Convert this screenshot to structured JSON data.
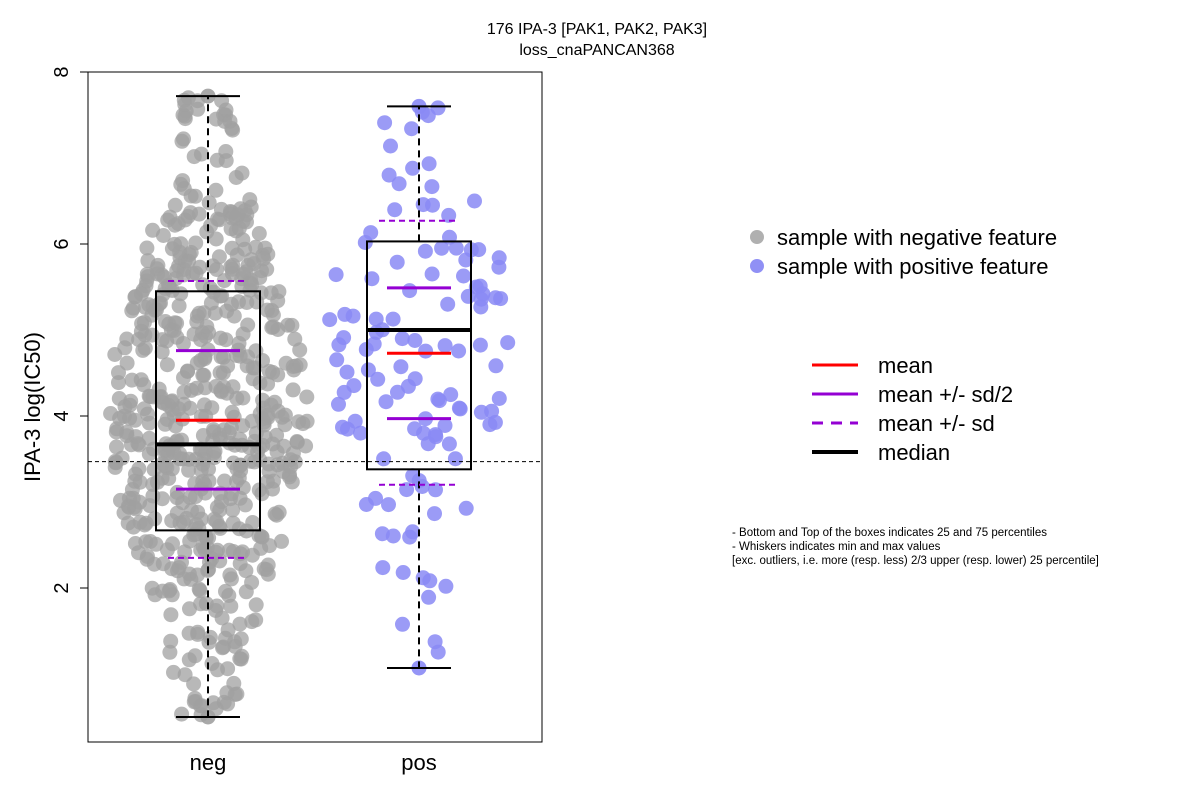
{
  "chart_data": {
    "type": "beeswarm-boxplot",
    "title": "176 IPA-3 [PAK1, PAK2, PAK3]",
    "subtitle": "loss_cnaPANCAN368",
    "ylabel": "IPA-3 log(IC50)",
    "xlabel": "",
    "ylim": [
      0.35,
      8.1
    ],
    "y_ticks": [
      2,
      4,
      6,
      8
    ],
    "y_tick_labels": [
      "2",
      "4",
      "6",
      "8"
    ],
    "categories": [
      "neg",
      "pos"
    ],
    "reference_line_y": 3.47,
    "groups": [
      {
        "category": "neg",
        "min": 0.5,
        "q1": 2.67,
        "median": 3.67,
        "q3": 5.45,
        "max": 7.72,
        "mean": 3.95,
        "mean_minus_half_sd": 3.15,
        "mean_plus_half_sd": 4.76,
        "mean_minus_sd": 2.35,
        "mean_plus_sd": 5.57,
        "n_points": 620,
        "color": "#a0a0a0"
      },
      {
        "category": "pos",
        "min": 1.07,
        "q1": 3.38,
        "median": 5.0,
        "q3": 6.03,
        "max": 7.6,
        "mean": 4.73,
        "mean_minus_half_sd": 3.97,
        "mean_plus_half_sd": 5.49,
        "mean_minus_sd": 3.2,
        "mean_plus_sd": 6.27,
        "n_points": 120,
        "color": "#8a8af5"
      }
    ],
    "legend_points": [
      {
        "label": "sample with negative feature",
        "color": "#b0b0b0"
      },
      {
        "label": "sample with positive feature",
        "color": "#9090f5"
      }
    ],
    "legend_lines": [
      {
        "label": "mean",
        "color": "#ff0000",
        "style": "solid"
      },
      {
        "label": "mean +/- sd/2",
        "color": "#9400d3",
        "style": "solid"
      },
      {
        "label": "mean +/- sd",
        "color": "#9400d3",
        "style": "dashed"
      },
      {
        "label": "median",
        "color": "#000000",
        "style": "solid"
      }
    ],
    "notes": [
      "- Bottom and Top of the boxes indicates 25 and 75 percentiles",
      "- Whiskers indicates min and max values",
      "[exc. outliers, i.e. more (resp. less) 2/3 upper (resp. lower) 25 percentile]"
    ]
  }
}
